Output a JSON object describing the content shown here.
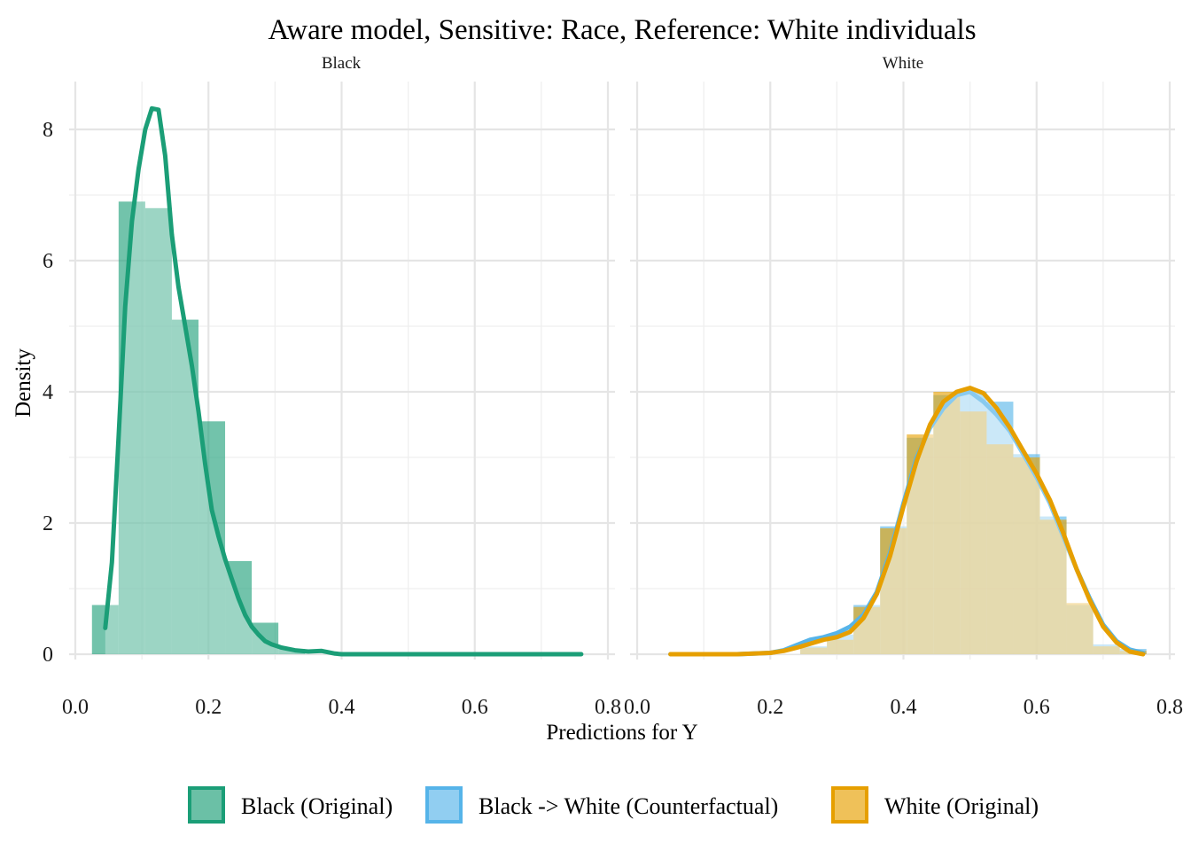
{
  "chart_data": {
    "type": "histogram-density",
    "title": "Aware model, Sensitive: Race, Reference: White individuals",
    "xlabel": "Predictions for Y",
    "ylabel": "Density",
    "xlim": [
      0.0,
      0.8
    ],
    "ylim": [
      0,
      8.5
    ],
    "x_ticks": [
      0.0,
      0.2,
      0.4,
      0.6,
      0.8
    ],
    "x_tick_labels": [
      "0.0",
      "0.2",
      "0.4",
      "0.6",
      "0.8"
    ],
    "y_ticks": [
      0,
      2,
      4,
      6,
      8
    ],
    "y_tick_labels": [
      "0",
      "2",
      "4",
      "6",
      "8"
    ],
    "grid": true,
    "legend_position": "bottom",
    "colors": {
      "black_original": "#1b9e77",
      "counterfactual": "#56b4e9",
      "white_original": "#e69f00"
    },
    "legend": [
      {
        "key": "black_original",
        "label": "Black (Original)"
      },
      {
        "key": "counterfactual",
        "label": "Black -> White (Counterfactual)"
      },
      {
        "key": "white_original",
        "label": "White (Original)"
      }
    ],
    "panels": [
      {
        "strip": "Black",
        "histograms": [
          {
            "key": "black_original",
            "bin_width": 0.04,
            "bin_starts": [
              0.025,
              0.065,
              0.105,
              0.145,
              0.185,
              0.225,
              0.265,
              0.305
            ],
            "values": [
              0.75,
              6.9,
              6.8,
              5.1,
              3.55,
              1.42,
              0.48,
              0.08
            ]
          }
        ],
        "densities": [
          {
            "key": "black_original",
            "x": [
              0.045,
              0.055,
              0.065,
              0.075,
              0.085,
              0.095,
              0.105,
              0.115,
              0.125,
              0.135,
              0.145,
              0.155,
              0.165,
              0.175,
              0.185,
              0.195,
              0.205,
              0.215,
              0.225,
              0.235,
              0.245,
              0.255,
              0.265,
              0.275,
              0.285,
              0.295,
              0.31,
              0.33,
              0.35,
              0.37,
              0.38,
              0.39,
              0.4,
              0.45,
              0.5,
              0.6,
              0.7,
              0.76
            ],
            "y": [
              0.4,
              1.4,
              3.3,
              5.3,
              6.6,
              7.4,
              8.0,
              8.32,
              8.3,
              7.6,
              6.4,
              5.6,
              5.0,
              4.4,
              3.7,
              2.9,
              2.2,
              1.8,
              1.45,
              1.15,
              0.85,
              0.6,
              0.42,
              0.3,
              0.2,
              0.15,
              0.1,
              0.06,
              0.04,
              0.05,
              0.03,
              0.01,
              0.0,
              0.0,
              0.0,
              0.0,
              0.0,
              0.0
            ]
          }
        ]
      },
      {
        "strip": "White",
        "histograms": [
          {
            "key": "counterfactual",
            "bin_width": 0.04,
            "bin_starts": [
              0.245,
              0.285,
              0.325,
              0.365,
              0.405,
              0.445,
              0.485,
              0.525,
              0.565,
              0.605,
              0.645,
              0.685,
              0.725
            ],
            "values": [
              0.12,
              0.3,
              0.75,
              1.95,
              3.3,
              3.95,
              4.0,
              3.85,
              3.05,
              2.1,
              0.75,
              0.15,
              0.08
            ]
          },
          {
            "key": "white_original",
            "bin_width": 0.04,
            "bin_starts": [
              0.245,
              0.285,
              0.325,
              0.365,
              0.405,
              0.445,
              0.485,
              0.525,
              0.565,
              0.605,
              0.645,
              0.685,
              0.725
            ],
            "values": [
              0.1,
              0.22,
              0.72,
              1.92,
              3.35,
              4.0,
              3.7,
              3.2,
              3.0,
              2.05,
              0.78,
              0.12,
              0.05
            ]
          }
        ],
        "densities": [
          {
            "key": "counterfactual",
            "x": [
              0.05,
              0.15,
              0.2,
              0.22,
              0.24,
              0.26,
              0.28,
              0.3,
              0.32,
              0.34,
              0.36,
              0.38,
              0.4,
              0.42,
              0.44,
              0.46,
              0.48,
              0.5,
              0.52,
              0.54,
              0.56,
              0.58,
              0.6,
              0.62,
              0.64,
              0.66,
              0.68,
              0.7,
              0.72,
              0.74,
              0.76
            ],
            "y": [
              0.0,
              0.0,
              0.02,
              0.06,
              0.14,
              0.22,
              0.26,
              0.32,
              0.42,
              0.6,
              0.95,
              1.55,
              2.3,
              3.0,
              3.45,
              3.75,
              3.95,
              4.0,
              3.85,
              3.65,
              3.4,
              3.05,
              2.7,
              2.3,
              1.8,
              1.3,
              0.85,
              0.45,
              0.2,
              0.07,
              0.02
            ]
          },
          {
            "key": "white_original",
            "x": [
              0.05,
              0.15,
              0.2,
              0.22,
              0.24,
              0.26,
              0.28,
              0.3,
              0.32,
              0.34,
              0.36,
              0.38,
              0.4,
              0.42,
              0.44,
              0.46,
              0.48,
              0.5,
              0.52,
              0.54,
              0.56,
              0.58,
              0.6,
              0.62,
              0.64,
              0.66,
              0.68,
              0.7,
              0.72,
              0.74,
              0.76
            ],
            "y": [
              0.0,
              0.0,
              0.02,
              0.05,
              0.1,
              0.16,
              0.22,
              0.26,
              0.34,
              0.55,
              0.92,
              1.5,
              2.25,
              2.95,
              3.5,
              3.85,
              4.0,
              4.06,
              3.98,
              3.75,
              3.45,
              3.1,
              2.75,
              2.35,
              1.85,
              1.3,
              0.82,
              0.42,
              0.18,
              0.04,
              0.0
            ]
          }
        ]
      }
    ]
  }
}
